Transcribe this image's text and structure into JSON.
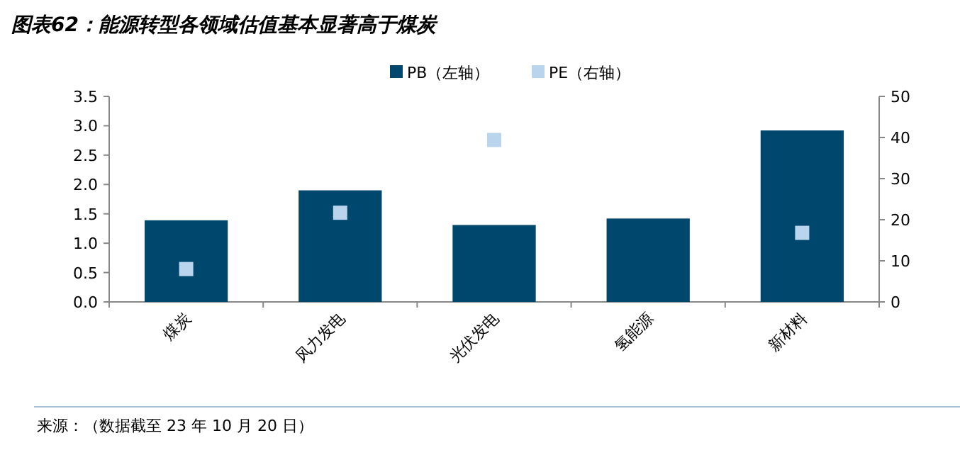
{
  "chart_data": {
    "type": "bar",
    "title": "图表62：能源转型各领域估值基本显著高于煤炭",
    "categories": [
      "煤炭",
      "风力发电",
      "光伏发电",
      "氢能源",
      "新材料"
    ],
    "series": [
      {
        "name": "PB（左轴）",
        "type": "bar",
        "color": "#00476e",
        "values": [
          1.39,
          1.9,
          1.31,
          1.42,
          2.92
        ]
      },
      {
        "name": "PE（右轴）",
        "type": "scatter",
        "axis": "y2",
        "marker": "square",
        "color": "#b9d4ec",
        "values": [
          8.0,
          21.7,
          39.4,
          null,
          16.8
        ]
      }
    ],
    "ylim": [
      0,
      3.5
    ],
    "yticks": [
      {
        "value": 0,
        "label": "0.0"
      },
      {
        "value": 0.5,
        "label": "0.5"
      },
      {
        "value": 1,
        "label": "1.0"
      },
      {
        "value": 1.5,
        "label": "1.5"
      },
      {
        "value": 2,
        "label": "2.0"
      },
      {
        "value": 2.5,
        "label": "2.5"
      },
      {
        "value": 3,
        "label": "3.0"
      },
      {
        "value": 3.5,
        "label": "3.5"
      }
    ],
    "y2lim": [
      0,
      50
    ],
    "y2ticks": [
      0,
      10,
      20,
      30,
      40,
      50
    ],
    "legend": "top",
    "annotations": [
      "来源：（数据截至 23 年 10 月 20 日）"
    ]
  }
}
